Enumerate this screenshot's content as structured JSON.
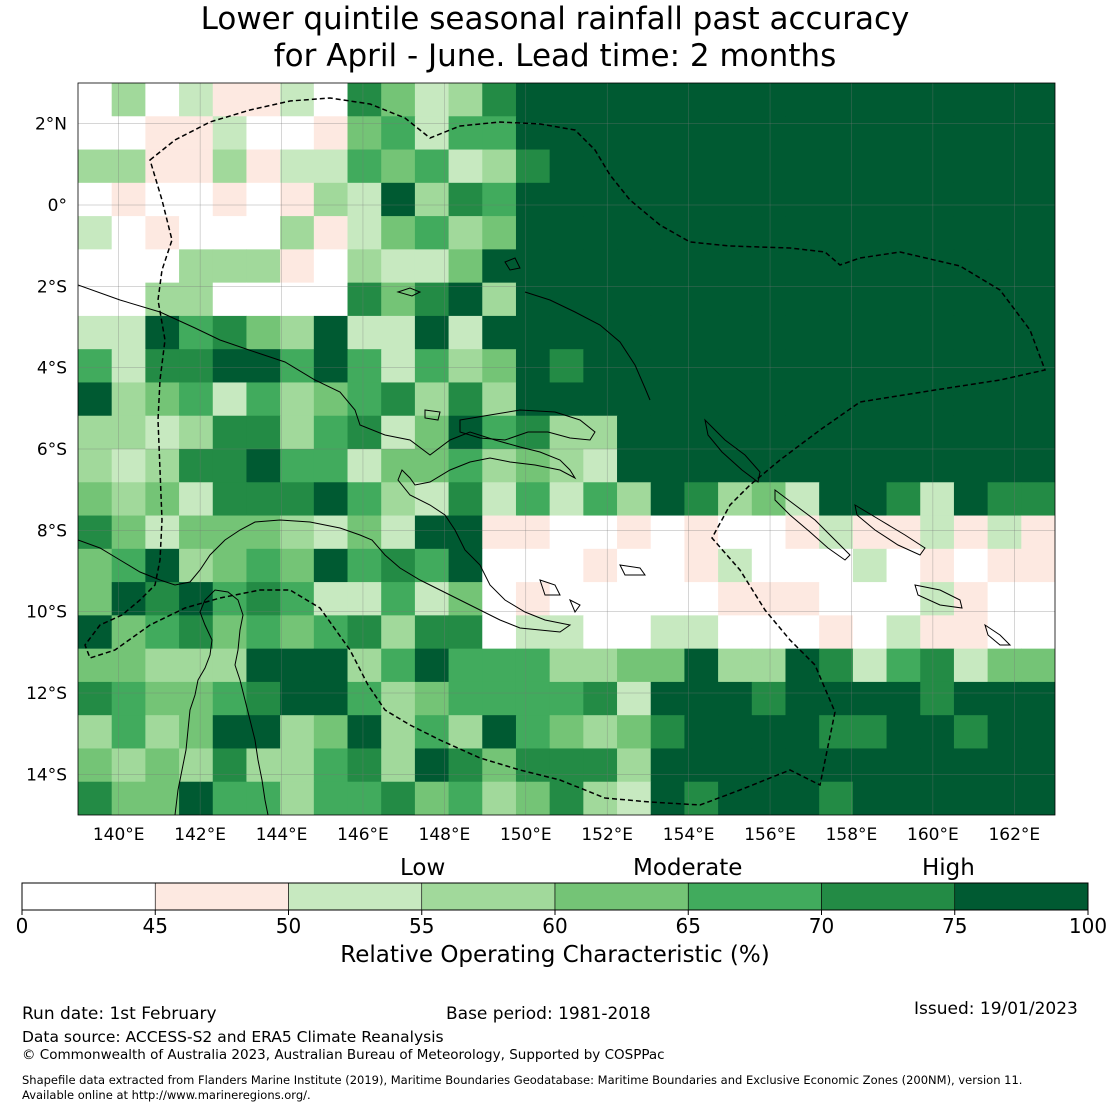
{
  "title_line1": "Lower quintile seasonal rainfall past accuracy",
  "title_line2": "for April - June. Lead time: 2 months",
  "map": {
    "lon_range": [
      139,
      163
    ],
    "lat_range": [
      -15,
      3
    ],
    "lon_ticks": [
      {
        "value": 140,
        "label": "140°E"
      },
      {
        "value": 142,
        "label": "142°E"
      },
      {
        "value": 144,
        "label": "144°E"
      },
      {
        "value": 146,
        "label": "146°E"
      },
      {
        "value": 148,
        "label": "148°E"
      },
      {
        "value": 150,
        "label": "150°E"
      },
      {
        "value": 152,
        "label": "152°E"
      },
      {
        "value": 154,
        "label": "154°E"
      },
      {
        "value": 156,
        "label": "156°E"
      },
      {
        "value": 158,
        "label": "158°E"
      },
      {
        "value": 160,
        "label": "160°E"
      },
      {
        "value": 162,
        "label": "162°E"
      }
    ],
    "lat_ticks": [
      {
        "value": 2,
        "label": "2°N"
      },
      {
        "value": 0,
        "label": "0°"
      },
      {
        "value": -2,
        "label": "2°S"
      },
      {
        "value": -4,
        "label": "4°S"
      },
      {
        "value": -6,
        "label": "6°S"
      },
      {
        "value": -8,
        "label": "8°S"
      },
      {
        "value": -10,
        "label": "10°S"
      },
      {
        "value": -12,
        "label": "12°S"
      },
      {
        "value": -14,
        "label": "14°S"
      }
    ]
  },
  "colorbar": {
    "categories": [
      "Low",
      "Moderate",
      "High"
    ],
    "ticks": [
      "0",
      "45",
      "50",
      "55",
      "60",
      "65",
      "70",
      "75",
      "100"
    ],
    "colors": [
      "#ffffff",
      "#fde9e1",
      "#c7e9c0",
      "#a1d99b",
      "#74c476",
      "#41ab5d",
      "#238b45",
      "#005a32"
    ],
    "label": "Relative Operating Characteristic (%)"
  },
  "footer": {
    "run_date": "Run date: 1st February",
    "base_period": "Base period: 1981-2018",
    "issued": "Issued: 19/01/2023",
    "data_source": "Data source: ACCESS-S2 and ERA5 Climate Reanalysis",
    "copyright": "© Commonwealth of Australia 2023, Australian Bureau of Meteorology, Supported by COSPPac",
    "shapefile_line1": "Shapefile data extracted from Flanders Marine Institute (2019), Maritime Boundaries Geodatabase: Maritime Boundaries and Exclusive Economic Zones (200NM), version 11.",
    "shapefile_line2": "Available online at http://www.marineregions.org/."
  }
}
